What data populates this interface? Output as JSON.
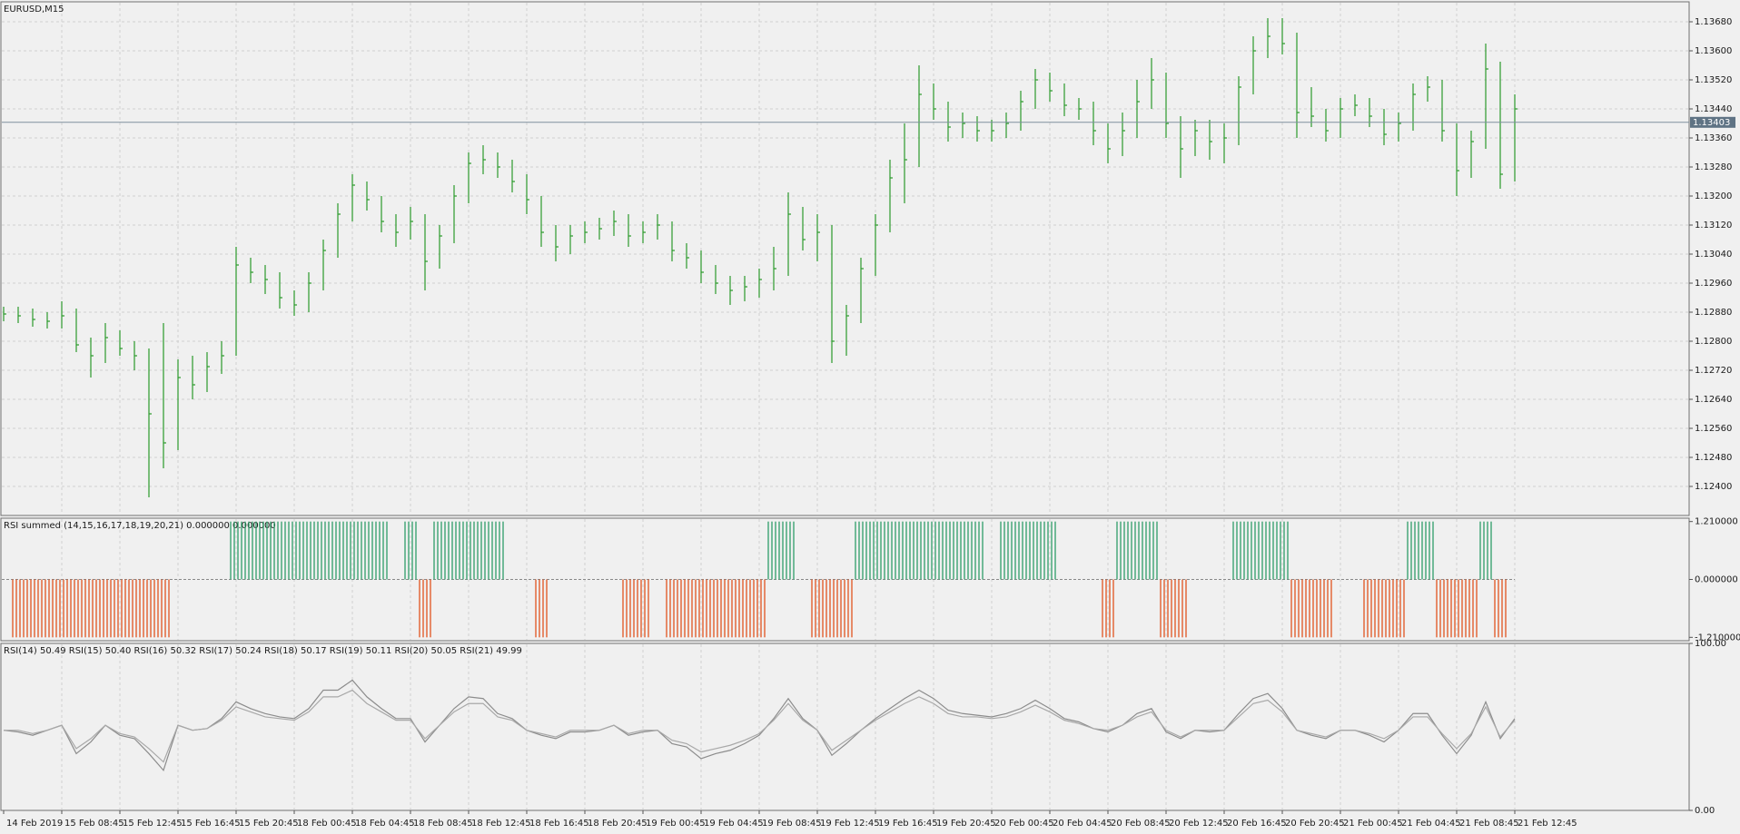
{
  "chart_data": [
    {
      "type": "hlc",
      "title": "EURUSD,M15",
      "color": "#2a9a2a",
      "high": [
        1.12895,
        1.12895,
        1.1289,
        1.1288,
        1.1291,
        1.1289,
        1.1281,
        1.1285,
        1.1283,
        1.128,
        1.1278,
        1.1285,
        1.1275,
        1.1276,
        1.1277,
        1.128,
        1.1306,
        1.1303,
        1.1301,
        1.1299,
        1.1294,
        1.1299,
        1.1308,
        1.1318,
        1.1326,
        1.1324,
        1.132,
        1.1315,
        1.1317,
        1.1315,
        1.1312,
        1.1323,
        1.1332,
        1.1334,
        1.1332,
        1.133,
        1.1326,
        1.132,
        1.1312,
        1.1312,
        1.1313,
        1.1314,
        1.1316,
        1.1315,
        1.1313,
        1.1315,
        1.1313,
        1.1307,
        1.1305,
        1.1301,
        1.1298,
        1.1298,
        1.13,
        1.1306,
        1.1321,
        1.1317,
        1.1315,
        1.1312,
        1.129,
        1.1303,
        1.1315,
        1.133,
        1.134,
        1.1356,
        1.1351,
        1.1346,
        1.1343,
        1.1342,
        1.1341,
        1.1343,
        1.1349,
        1.1355,
        1.1354,
        1.1351,
        1.1347,
        1.1346,
        1.134,
        1.1343,
        1.1352,
        1.1358,
        1.1354,
        1.1342,
        1.1341,
        1.1341,
        1.134,
        1.1353,
        1.1364,
        1.1369,
        1.1369,
        1.1365,
        1.135,
        1.1344,
        1.1347,
        1.1348,
        1.1347,
        1.1344,
        1.1343,
        1.1351,
        1.1353,
        1.1352,
        1.134,
        1.1338,
        1.1362,
        1.1357,
        1.1348
      ],
      "low": [
        1.12855,
        1.1285,
        1.1284,
        1.12835,
        1.12835,
        1.1277,
        1.127,
        1.1274,
        1.1276,
        1.1272,
        1.1237,
        1.1245,
        1.125,
        1.1264,
        1.1266,
        1.1271,
        1.1276,
        1.1296,
        1.1293,
        1.1289,
        1.1287,
        1.1288,
        1.1294,
        1.1303,
        1.1313,
        1.1316,
        1.131,
        1.1306,
        1.1308,
        1.1294,
        1.13,
        1.1307,
        1.1318,
        1.1326,
        1.1325,
        1.1321,
        1.1315,
        1.1306,
        1.1302,
        1.1304,
        1.1307,
        1.1308,
        1.1309,
        1.1306,
        1.1307,
        1.1308,
        1.1302,
        1.13,
        1.1296,
        1.1293,
        1.129,
        1.1291,
        1.1292,
        1.1294,
        1.1298,
        1.1305,
        1.1302,
        1.1274,
        1.1276,
        1.1285,
        1.1298,
        1.131,
        1.1318,
        1.1328,
        1.1341,
        1.1335,
        1.1336,
        1.1335,
        1.1335,
        1.1336,
        1.1338,
        1.1344,
        1.1346,
        1.1342,
        1.1341,
        1.1334,
        1.1329,
        1.1331,
        1.1336,
        1.1344,
        1.1336,
        1.1325,
        1.1331,
        1.133,
        1.1329,
        1.1334,
        1.1348,
        1.1358,
        1.1359,
        1.1336,
        1.1339,
        1.1335,
        1.1336,
        1.1342,
        1.1339,
        1.1334,
        1.1335,
        1.1338,
        1.1346,
        1.1335,
        1.132,
        1.1325,
        1.1333,
        1.1322,
        1.1324
      ],
      "close": [
        1.12875,
        1.1287,
        1.1286,
        1.12855,
        1.1287,
        1.1279,
        1.1276,
        1.1281,
        1.1278,
        1.1276,
        1.126,
        1.1252,
        1.127,
        1.1268,
        1.1273,
        1.1276,
        1.1301,
        1.1299,
        1.1297,
        1.1292,
        1.129,
        1.1296,
        1.1305,
        1.1315,
        1.1323,
        1.1319,
        1.1313,
        1.131,
        1.1313,
        1.1302,
        1.1309,
        1.132,
        1.1329,
        1.133,
        1.1328,
        1.1324,
        1.1319,
        1.131,
        1.1306,
        1.1309,
        1.131,
        1.1311,
        1.1313,
        1.1309,
        1.131,
        1.1312,
        1.1305,
        1.1303,
        1.1299,
        1.1296,
        1.1294,
        1.1295,
        1.1297,
        1.13,
        1.1315,
        1.1308,
        1.131,
        1.128,
        1.1287,
        1.13,
        1.1312,
        1.1325,
        1.133,
        1.1348,
        1.1344,
        1.1339,
        1.134,
        1.1338,
        1.1338,
        1.134,
        1.1346,
        1.1352,
        1.1349,
        1.1345,
        1.1344,
        1.1338,
        1.1333,
        1.1338,
        1.1346,
        1.1352,
        1.134,
        1.1333,
        1.1338,
        1.1335,
        1.1336,
        1.135,
        1.136,
        1.1364,
        1.1362,
        1.1343,
        1.1342,
        1.1338,
        1.1344,
        1.1345,
        1.1342,
        1.1337,
        1.134,
        1.1348,
        1.135,
        1.1338,
        1.1327,
        1.1335,
        1.1355,
        1.1326,
        1.1344
      ],
      "last_price": 1.13403,
      "last_price_color": "#5f7384",
      "ylim": [
        1.1232,
        1.13735
      ],
      "yticks": [
        {
          "value": 1.124,
          "label": "1.12400"
        },
        {
          "value": 1.1248,
          "label": "1.12480"
        },
        {
          "value": 1.1256,
          "label": "1.12560"
        },
        {
          "value": 1.1264,
          "label": "1.12640"
        },
        {
          "value": 1.1272,
          "label": "1.12720"
        },
        {
          "value": 1.128,
          "label": "1.12800"
        },
        {
          "value": 1.1288,
          "label": "1.12880"
        },
        {
          "value": 1.1296,
          "label": "1.12960"
        },
        {
          "value": 1.1304,
          "label": "1.13040"
        },
        {
          "value": 1.1312,
          "label": "1.13120"
        },
        {
          "value": 1.132,
          "label": "1.13200"
        },
        {
          "value": 1.1328,
          "label": "1.13280"
        },
        {
          "value": 1.1336,
          "label": "1.13360"
        },
        {
          "value": 1.1344,
          "label": "1.13440"
        },
        {
          "value": 1.1352,
          "label": "1.13520"
        },
        {
          "value": 1.136,
          "label": "1.13600"
        },
        {
          "value": 1.1368,
          "label": "1.13680"
        }
      ],
      "grid": true
    },
    {
      "type": "bar",
      "title": "RSI summed (14,15,16,17,18,19,20,21) 0.000000 0.000000",
      "up_color": "#2e9e68",
      "down_color": "#e2531e",
      "values": [
        0,
        -1.21,
        -1.21,
        -1.21,
        -1.21,
        -1.21,
        -1.21,
        -1.21,
        -1.21,
        -1.21,
        -1.21,
        -1.21,
        0,
        0,
        0,
        0,
        1.21,
        1.21,
        1.21,
        1.21,
        1.21,
        1.21,
        1.21,
        1.21,
        1.21,
        1.21,
        1.21,
        0,
        1.21,
        -1.21,
        1.21,
        1.21,
        1.21,
        1.21,
        1.21,
        0,
        0,
        -1.21,
        0,
        0,
        0,
        0,
        0,
        -1.21,
        -1.21,
        0,
        -1.21,
        -1.21,
        -1.21,
        -1.21,
        -1.21,
        -1.21,
        -1.21,
        1.21,
        1.21,
        0,
        -1.21,
        -1.21,
        -1.21,
        1.21,
        1.21,
        1.21,
        1.21,
        1.21,
        1.21,
        1.21,
        1.21,
        1.21,
        0,
        1.21,
        1.21,
        1.21,
        1.21,
        0,
        0,
        0,
        -1.21,
        1.21,
        1.21,
        1.21,
        -1.21,
        -1.21,
        0,
        0,
        0,
        1.21,
        1.21,
        1.21,
        1.21,
        -1.21,
        -1.21,
        -1.21,
        0,
        0,
        -1.21,
        -1.21,
        -1.21,
        1.21,
        1.21,
        -1.21,
        -1.21,
        -1.21,
        1.21,
        -1.21,
        0
      ],
      "ylim": [
        -1.28,
        1.28
      ],
      "yticks": [
        {
          "value": 1.21,
          "label": "1.210000"
        },
        {
          "value": 0,
          "label": "0.000000"
        },
        {
          "value": -1.21,
          "label": "-1.210000"
        }
      ],
      "grid": false
    },
    {
      "type": "line",
      "title": "RSI(14) 50.49 RSI(15) 50.40 RSI(16) 50.32 RSI(17) 50.24 RSI(18) 50.17 RSI(19) 50.11 RSI(20) 50.05 RSI(21) 49.99",
      "categories": [
        "14 Feb 2019",
        null,
        null,
        null,
        "15 Feb 08:45",
        null,
        null,
        null,
        "15 Feb 12:45",
        null,
        null,
        null,
        "15 Feb 16:45",
        null,
        null,
        null,
        "15 Feb 20:45",
        null,
        null,
        null,
        "18 Feb 00:45",
        null,
        null,
        null,
        "18 Feb 04:45",
        null,
        null,
        null,
        "18 Feb 08:45",
        null,
        null,
        null,
        "18 Feb 12:45",
        null,
        null,
        null,
        "18 Feb 16:45",
        null,
        null,
        null,
        "18 Feb 20:45",
        null,
        null,
        null,
        "19 Feb 00:45",
        null,
        null,
        null,
        "19 Feb 04:45",
        null,
        null,
        null,
        "19 Feb 08:45",
        null,
        null,
        null,
        "19 Feb 12:45",
        null,
        null,
        null,
        "19 Feb 16:45",
        null,
        null,
        null,
        "19 Feb 20:45",
        null,
        null,
        null,
        "20 Feb 00:45",
        null,
        null,
        null,
        "20 Feb 04:45",
        null,
        null,
        null,
        "20 Feb 08:45",
        null,
        null,
        null,
        "20 Feb 12:45",
        null,
        null,
        null,
        "20 Feb 16:45",
        null,
        null,
        null,
        "20 Feb 20:45",
        null,
        null,
        null,
        "21 Feb 00:45",
        null,
        null,
        null,
        "21 Feb 04:45",
        null,
        null,
        null,
        "21 Feb 08:45",
        null,
        null,
        null,
        "21 Feb 12:45"
      ],
      "series": [
        {
          "color": "#8c8c8c",
          "values": [
            48,
            47,
            45,
            48,
            51,
            34,
            41,
            51,
            45,
            43,
            34,
            24,
            51,
            48,
            49,
            55,
            65,
            61,
            58,
            56,
            55,
            61,
            72,
            72,
            78,
            68,
            61,
            55,
            55,
            41,
            51,
            61,
            68,
            67,
            58,
            55,
            48,
            45,
            43,
            47,
            47,
            48,
            51,
            45,
            47,
            48,
            40,
            38,
            31,
            34,
            36,
            40,
            45,
            55,
            67,
            55,
            48,
            33,
            40,
            48,
            55,
            61,
            67,
            72,
            67,
            60,
            58,
            57,
            56,
            58,
            61,
            66,
            61,
            55,
            53,
            49,
            47,
            51,
            58,
            61,
            47,
            43,
            48,
            47,
            48,
            58,
            67,
            70,
            61,
            48,
            45,
            43,
            48,
            48,
            45,
            41,
            48,
            58,
            58,
            45,
            34,
            45,
            65,
            43,
            55
          ]
        },
        {
          "color": "#a8a8a8",
          "values": [
            48,
            48,
            46,
            48,
            51,
            37,
            43,
            51,
            46,
            44,
            37,
            29,
            51,
            48,
            49,
            54,
            62,
            59,
            56,
            55,
            54,
            59,
            68,
            68,
            72,
            64,
            59,
            54,
            54,
            43,
            51,
            59,
            64,
            64,
            56,
            54,
            48,
            46,
            44,
            48,
            48,
            48,
            51,
            46,
            48,
            48,
            42,
            40,
            35,
            37,
            39,
            42,
            46,
            54,
            64,
            54,
            48,
            36,
            42,
            48,
            54,
            59,
            64,
            68,
            64,
            58,
            56,
            56,
            55,
            56,
            59,
            63,
            59,
            54,
            52,
            49,
            48,
            51,
            56,
            59,
            48,
            44,
            48,
            48,
            48,
            56,
            64,
            66,
            59,
            48,
            46,
            44,
            48,
            48,
            46,
            43,
            48,
            56,
            56,
            46,
            37,
            46,
            62,
            44,
            54
          ]
        }
      ],
      "ylim": [
        0,
        100
      ],
      "yticks": [
        {
          "value": 100,
          "label": "100.00"
        },
        {
          "value": 0,
          "label": "0.00"
        }
      ],
      "grid": false
    }
  ]
}
